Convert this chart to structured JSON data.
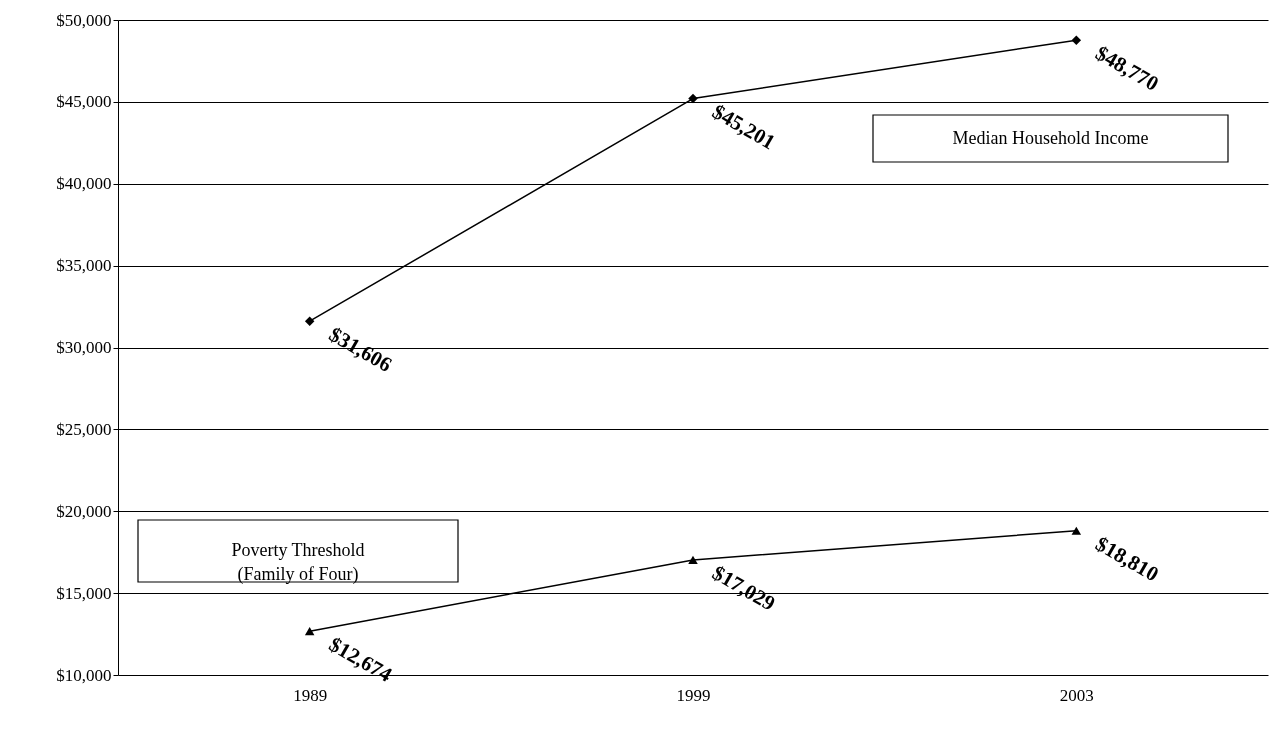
{
  "chart_data": {
    "type": "line",
    "categories": [
      "1989",
      "1999",
      "2003"
    ],
    "series": [
      {
        "name": "Median Household Income",
        "color": "#000000",
        "marker": "diamond",
        "values": [
          31606,
          45201,
          48770
        ],
        "value_labels": [
          "$31,606",
          "$45,201",
          "$48,770"
        ]
      },
      {
        "name": "Poverty Threshold\n(Family of Four)",
        "color": "#000000",
        "marker": "triangle",
        "values": [
          12674,
          17029,
          18810
        ],
        "value_labels": [
          "$12,674",
          "$17,029",
          "$18,810"
        ]
      }
    ],
    "ylim": [
      10000,
      50000
    ],
    "yticks": [
      {
        "value": 10000,
        "label": "$10,000"
      },
      {
        "value": 15000,
        "label": "$15,000"
      },
      {
        "value": 20000,
        "label": "$20,000"
      },
      {
        "value": 25000,
        "label": "$25,000"
      },
      {
        "value": 30000,
        "label": "$30,000"
      },
      {
        "value": 35000,
        "label": "$35,000"
      },
      {
        "value": 40000,
        "label": "$40,000"
      },
      {
        "value": 45000,
        "label": "$45,000"
      },
      {
        "value": 50000,
        "label": "$50,000"
      }
    ],
    "grid": "y",
    "legend": false,
    "line_style": "solid"
  }
}
